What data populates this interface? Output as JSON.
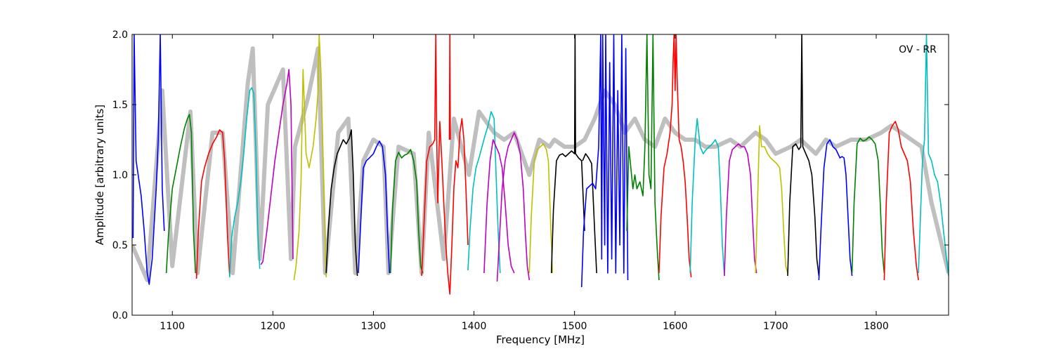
{
  "chart_data": {
    "type": "line",
    "title": "",
    "annotation": "OV - RR",
    "xlabel": "Frequency [MHz]",
    "ylabel": "Amplitude [arbitrary units]",
    "xlim": [
      1060,
      1872
    ],
    "ylim": [
      0.0,
      2.0
    ],
    "xticks": [
      1100,
      1200,
      1300,
      1400,
      1500,
      1600,
      1700,
      1800
    ],
    "yticks": [
      0.0,
      0.5,
      1.0,
      1.5,
      2.0
    ],
    "ytick_labels": [
      "0.0",
      "0.5",
      "1.0",
      "1.5",
      "2.0"
    ],
    "grid": false,
    "background_series_color": "#bfbfbf",
    "colors": {
      "b": "#0000ff",
      "g": "#008000",
      "r": "#ff0000",
      "c": "#00bfbf",
      "m": "#bf00bf",
      "y": "#bfbf00",
      "k": "#000000"
    },
    "background_series": {
      "x": [
        1060,
        1075,
        1090,
        1100,
        1118,
        1125,
        1140,
        1150,
        1160,
        1175,
        1180,
        1187,
        1195,
        1210,
        1218,
        1222,
        1235,
        1245,
        1252,
        1265,
        1275,
        1282,
        1290,
        1300,
        1310,
        1315,
        1325,
        1340,
        1348,
        1355,
        1370,
        1380,
        1395,
        1405,
        1420,
        1430,
        1440,
        1455,
        1465,
        1475,
        1480,
        1490,
        1500,
        1510,
        1520,
        1530,
        1540,
        1550,
        1560,
        1570,
        1580,
        1590,
        1600,
        1610,
        1620,
        1630,
        1640,
        1655,
        1665,
        1680,
        1690,
        1700,
        1715,
        1725,
        1740,
        1750,
        1760,
        1775,
        1790,
        1805,
        1815,
        1825,
        1835,
        1845,
        1855,
        1872
      ],
      "y": [
        0.5,
        0.25,
        1.6,
        0.35,
        1.45,
        0.3,
        1.3,
        1.3,
        0.3,
        1.65,
        1.9,
        0.4,
        1.5,
        1.75,
        0.4,
        1.2,
        1.55,
        1.9,
        0.3,
        1.3,
        1.4,
        0.3,
        1.1,
        1.25,
        1.2,
        0.3,
        1.2,
        1.15,
        0.3,
        1.3,
        0.4,
        1.4,
        1.0,
        1.45,
        1.3,
        1.25,
        1.3,
        1.0,
        1.25,
        1.2,
        1.25,
        1.2,
        1.2,
        1.25,
        1.4,
        1.6,
        1.5,
        1.3,
        1.4,
        1.25,
        1.2,
        1.4,
        1.3,
        1.25,
        1.25,
        1.2,
        1.2,
        1.25,
        1.2,
        1.3,
        1.25,
        1.15,
        1.2,
        1.25,
        1.15,
        1.25,
        1.2,
        1.25,
        1.25,
        1.3,
        1.35,
        1.3,
        1.25,
        1.2,
        0.8,
        0.3
      ]
    },
    "series": [
      {
        "color": "b",
        "x": [
          1061,
          1062,
          1064,
          1066,
          1069,
          1072,
          1075,
          1077,
          1080,
          1084,
          1086,
          1088,
          1090,
          1092
        ],
        "y": [
          0.55,
          2.0,
          1.1,
          1.0,
          0.85,
          0.6,
          0.3,
          0.22,
          0.4,
          0.9,
          1.25,
          2.0,
          0.9,
          0.6
        ]
      },
      {
        "color": "g",
        "x": [
          1094,
          1096,
          1100,
          1104,
          1108,
          1112,
          1115,
          1117,
          1119,
          1121,
          1123
        ],
        "y": [
          0.3,
          0.55,
          0.9,
          1.05,
          1.2,
          1.33,
          1.4,
          1.43,
          1.3,
          0.6,
          0.3
        ]
      },
      {
        "color": "r",
        "x": [
          1124,
          1126,
          1129,
          1132,
          1136,
          1140,
          1144,
          1147,
          1150,
          1152,
          1155,
          1157
        ],
        "y": [
          0.26,
          0.6,
          0.95,
          1.05,
          1.15,
          1.22,
          1.27,
          1.32,
          1.3,
          1.1,
          0.55,
          0.28
        ]
      },
      {
        "color": "c",
        "x": [
          1157,
          1159,
          1162,
          1165,
          1168,
          1171,
          1174,
          1177,
          1179,
          1181,
          1183,
          1185,
          1187
        ],
        "y": [
          0.27,
          0.55,
          0.7,
          0.8,
          0.95,
          1.15,
          1.4,
          1.6,
          1.62,
          1.58,
          1.2,
          0.6,
          0.33
        ]
      },
      {
        "color": "m",
        "x": [
          1188,
          1190,
          1194,
          1198,
          1202,
          1206,
          1210,
          1214,
          1216,
          1218,
          1220
        ],
        "y": [
          0.36,
          0.38,
          0.6,
          0.85,
          1.1,
          1.3,
          1.5,
          1.65,
          1.75,
          1.5,
          0.4
        ]
      },
      {
        "color": "y",
        "x": [
          1221,
          1223,
          1226,
          1228,
          1230,
          1233,
          1236,
          1240,
          1243,
          1245,
          1246,
          1248,
          1250,
          1252,
          1253
        ],
        "y": [
          0.25,
          0.35,
          0.6,
          0.95,
          1.75,
          1.15,
          1.05,
          1.2,
          1.4,
          1.6,
          2.0,
          1.7,
          1.1,
          0.5,
          0.27
        ]
      },
      {
        "color": "k",
        "x": [
          1253,
          1255,
          1258,
          1261,
          1264,
          1267,
          1270,
          1273,
          1276,
          1278,
          1280,
          1282,
          1284
        ],
        "y": [
          0.3,
          0.6,
          0.9,
          1.05,
          1.15,
          1.2,
          1.25,
          1.22,
          1.26,
          1.32,
          1.0,
          0.5,
          0.28
        ]
      },
      {
        "color": "b",
        "x": [
          1285,
          1287,
          1290,
          1293,
          1296,
          1300,
          1303,
          1306,
          1309,
          1312,
          1314,
          1316
        ],
        "y": [
          0.3,
          0.6,
          1.05,
          1.1,
          1.12,
          1.15,
          1.2,
          1.24,
          1.2,
          1.0,
          0.6,
          0.3
        ]
      },
      {
        "color": "g",
        "x": [
          1317,
          1319,
          1322,
          1325,
          1328,
          1331,
          1334,
          1337,
          1340,
          1343,
          1345,
          1347,
          1349
        ],
        "y": [
          0.3,
          0.75,
          1.1,
          1.16,
          1.12,
          1.14,
          1.15,
          1.18,
          1.1,
          0.95,
          0.6,
          0.35,
          0.3
        ]
      },
      {
        "color": "r",
        "x": [
          1348,
          1350,
          1353,
          1356,
          1359,
          1361,
          1362,
          1363,
          1364,
          1366,
          1368,
          1370,
          1372,
          1374,
          1376,
          1378,
          1380,
          1382,
          1384,
          1386,
          1388,
          1390,
          1392,
          1394
        ],
        "y": [
          0.28,
          0.6,
          1.1,
          1.2,
          1.22,
          1.25,
          2.0,
          1.25,
          0.8,
          1.38,
          1.1,
          0.8,
          0.5,
          0.3,
          0.15,
          0.5,
          0.9,
          1.1,
          1.05,
          1.3,
          1.4,
          1.25,
          0.9,
          0.5
        ]
      },
      {
        "color": "r",
        "x": [
          1375.5,
          1376,
          1376.5
        ],
        "y": [
          1.25,
          2.0,
          1.25
        ]
      },
      {
        "color": "c",
        "x": [
          1394,
          1396,
          1399,
          1402,
          1405,
          1408,
          1411,
          1414,
          1417,
          1420,
          1422,
          1424,
          1426
        ],
        "y": [
          0.32,
          0.6,
          0.9,
          1.05,
          1.12,
          1.2,
          1.28,
          1.35,
          1.45,
          1.4,
          1.0,
          0.6,
          0.3
        ]
      },
      {
        "color": "m",
        "x": [
          1423,
          1425,
          1428,
          1431,
          1434,
          1437,
          1440,
          1443,
          1446,
          1449,
          1451,
          1453,
          1455
        ],
        "y": [
          0.24,
          0.5,
          0.9,
          1.1,
          1.2,
          1.25,
          1.3,
          1.25,
          1.15,
          0.9,
          0.6,
          0.35,
          0.25
        ]
      },
      {
        "color": "m",
        "x": [
          1410,
          1413,
          1416,
          1419,
          1422,
          1425,
          1428,
          1431,
          1434,
          1437,
          1440
        ],
        "y": [
          0.3,
          0.8,
          1.1,
          1.25,
          1.2,
          1.15,
          1.05,
          0.8,
          0.5,
          0.35,
          0.3
        ]
      },
      {
        "color": "y",
        "x": [
          1455,
          1457,
          1460,
          1463,
          1466,
          1469,
          1472,
          1474,
          1476,
          1478
        ],
        "y": [
          0.3,
          0.7,
          1.1,
          1.18,
          1.2,
          1.22,
          1.18,
          1.1,
          0.7,
          0.3
        ]
      },
      {
        "color": "k",
        "x": [
          1477,
          1479,
          1482,
          1485,
          1488,
          1491,
          1494,
          1497,
          1500,
          1500.5,
          1501,
          1504,
          1507,
          1510
        ],
        "y": [
          0.3,
          0.75,
          1.1,
          1.14,
          1.15,
          1.13,
          1.15,
          1.17,
          1.15,
          2.0,
          1.15,
          1.12,
          1.1,
          0.6
        ]
      },
      {
        "color": "k",
        "x": [
          1508,
          1511,
          1514,
          1517,
          1520,
          1522
        ],
        "y": [
          1.1,
          1.15,
          1.12,
          1.08,
          0.6,
          0.3
        ]
      },
      {
        "color": "b",
        "x": [
          1507,
          1509,
          1512,
          1515,
          1518,
          1521,
          1524,
          1526,
          1527,
          1528,
          1530,
          1531,
          1533,
          1535,
          1537,
          1539,
          1541,
          1543,
          1545,
          1547,
          1549,
          1551,
          1553
        ],
        "y": [
          0.2,
          0.6,
          0.9,
          0.92,
          0.94,
          0.9,
          1.2,
          2.0,
          0.4,
          2.0,
          0.5,
          2.0,
          0.3,
          1.8,
          0.4,
          2.0,
          0.3,
          1.6,
          0.5,
          2.0,
          0.3,
          1.9,
          0.25
        ]
      },
      {
        "color": "g",
        "x": [
          1552,
          1554,
          1556,
          1558,
          1560,
          1562,
          1565,
          1568,
          1570,
          1572,
          1574,
          1576,
          1578,
          1580,
          1582,
          1584
        ],
        "y": [
          0.6,
          1.2,
          1.05,
          0.9,
          1.0,
          0.9,
          0.95,
          0.85,
          1.2,
          2.0,
          1.0,
          0.9,
          2.0,
          0.8,
          0.5,
          0.25
        ]
      },
      {
        "color": "r",
        "x": [
          1584,
          1586,
          1589,
          1592,
          1595,
          1597,
          1598,
          1599,
          1600,
          1601,
          1602,
          1604,
          1606,
          1608,
          1610,
          1612,
          1614,
          1616
        ],
        "y": [
          0.3,
          0.7,
          1.05,
          1.15,
          1.3,
          1.5,
          1.8,
          2.0,
          1.6,
          2.0,
          1.7,
          1.25,
          1.2,
          1.1,
          0.95,
          0.7,
          0.4,
          0.27
        ]
      },
      {
        "color": "c",
        "x": [
          1615,
          1617,
          1620,
          1622,
          1625,
          1628,
          1631,
          1634,
          1637,
          1640,
          1643,
          1645,
          1647,
          1649
        ],
        "y": [
          0.3,
          0.8,
          1.25,
          1.4,
          1.2,
          1.15,
          1.18,
          1.2,
          1.22,
          1.25,
          1.2,
          0.9,
          0.5,
          0.28
        ]
      },
      {
        "color": "m",
        "x": [
          1649,
          1651,
          1654,
          1657,
          1660,
          1663,
          1666,
          1669,
          1672,
          1675,
          1677,
          1679,
          1681
        ],
        "y": [
          0.28,
          0.7,
          1.1,
          1.18,
          1.2,
          1.22,
          1.2,
          1.2,
          1.15,
          1.0,
          0.7,
          0.4,
          0.3
        ]
      },
      {
        "color": "y",
        "x": [
          1680,
          1682,
          1684,
          1686,
          1689,
          1692,
          1695,
          1698,
          1701,
          1704,
          1706,
          1708,
          1710,
          1712
        ],
        "y": [
          0.3,
          0.8,
          1.35,
          1.2,
          1.2,
          1.15,
          1.12,
          1.1,
          1.08,
          1.05,
          0.9,
          0.6,
          0.35,
          0.3
        ]
      },
      {
        "color": "k",
        "x": [
          1712,
          1714,
          1717,
          1720,
          1723,
          1725,
          1726,
          1727,
          1730,
          1733,
          1736,
          1739,
          1741,
          1743
        ],
        "y": [
          0.28,
          0.8,
          1.2,
          1.22,
          1.18,
          1.2,
          2.0,
          1.2,
          1.15,
          1.1,
          1.0,
          0.7,
          0.4,
          0.28
        ]
      },
      {
        "color": "b",
        "x": [
          1743,
          1745,
          1748,
          1751,
          1754,
          1757,
          1760,
          1762,
          1764,
          1766,
          1768,
          1770,
          1772,
          1774,
          1776
        ],
        "y": [
          0.25,
          0.6,
          1.05,
          1.22,
          1.25,
          1.2,
          1.18,
          1.15,
          1.12,
          1.13,
          1.12,
          1.0,
          0.7,
          0.4,
          0.28
        ]
      },
      {
        "color": "g",
        "x": [
          1776,
          1778,
          1781,
          1784,
          1787,
          1790,
          1793,
          1796,
          1799,
          1802,
          1804,
          1806,
          1808
        ],
        "y": [
          0.3,
          0.8,
          1.22,
          1.26,
          1.24,
          1.25,
          1.27,
          1.25,
          1.22,
          1.1,
          0.8,
          0.45,
          0.3
        ]
      },
      {
        "color": "r",
        "x": [
          1808,
          1810,
          1813,
          1816,
          1819,
          1822,
          1825,
          1828,
          1831,
          1834,
          1837,
          1840,
          1842
        ],
        "y": [
          0.25,
          0.8,
          1.3,
          1.35,
          1.38,
          1.32,
          1.2,
          1.15,
          1.1,
          0.95,
          0.6,
          0.35,
          0.25
        ]
      },
      {
        "color": "c",
        "x": [
          1842,
          1844,
          1846,
          1848,
          1850,
          1852,
          1855,
          1858,
          1861,
          1864,
          1867,
          1870,
          1872
        ],
        "y": [
          0.3,
          0.7,
          1.1,
          1.25,
          2.0,
          1.15,
          1.1,
          1.0,
          0.95,
          0.8,
          0.6,
          0.4,
          0.28
        ]
      }
    ]
  }
}
